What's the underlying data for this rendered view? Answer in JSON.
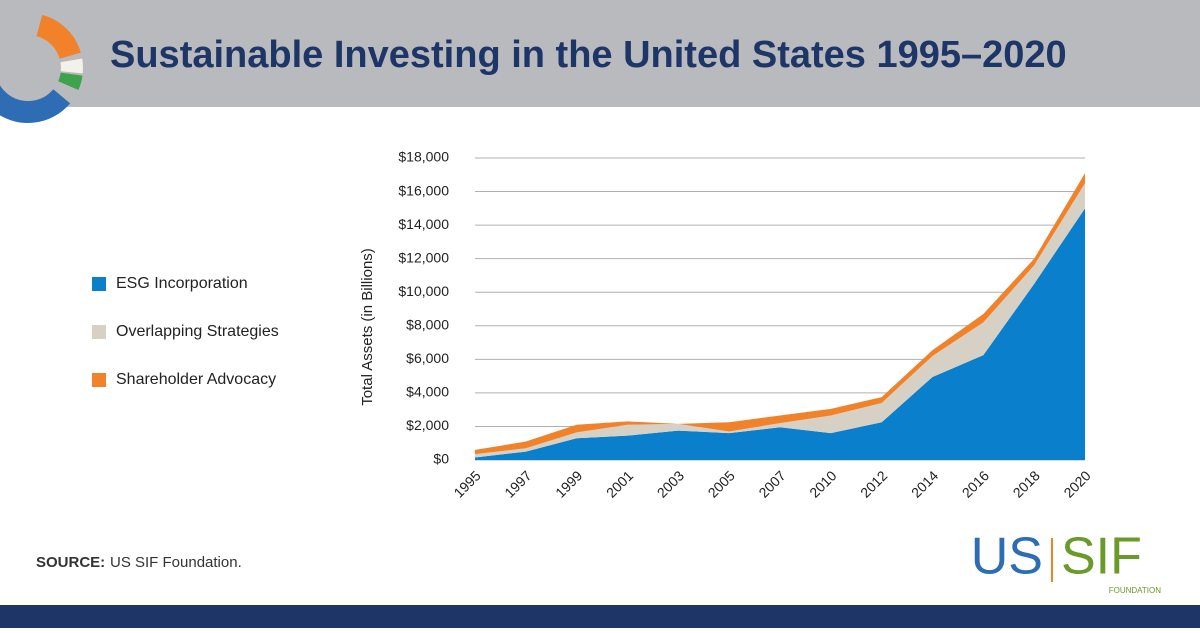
{
  "chart_data": {
    "type": "stacked_area",
    "title": "Sustainable Investing in the United States 1995–2020",
    "y_label": "Total Assets (in Billions)",
    "categories": [
      "1995",
      "1997",
      "1999",
      "2001",
      "2003",
      "2005",
      "2007",
      "2010",
      "2012",
      "2014",
      "2016",
      "2018",
      "2020"
    ],
    "series": [
      {
        "name": "ESG Incorporation",
        "color": "#0a7fcb",
        "values": [
          150,
          500,
          1300,
          1450,
          1750,
          1600,
          1950,
          1600,
          2250,
          4950,
          6250,
          10500,
          15000
        ]
      },
      {
        "name": "Overlapping Strategies",
        "color": "#d6d1c4",
        "values": [
          200,
          200,
          350,
          650,
          400,
          100,
          250,
          1050,
          1150,
          1250,
          1950,
          1100,
          1500
        ]
      },
      {
        "name": "Shareholder Advocacy",
        "color": "#f1822a",
        "values": [
          250,
          400,
          450,
          200,
          0,
          550,
          450,
          400,
          350,
          350,
          500,
          400,
          600
        ]
      }
    ],
    "ylim": [
      0,
      18000
    ],
    "yticks": [
      {
        "value": 0,
        "label": "$0"
      },
      {
        "value": 2000,
        "label": "$2,000"
      },
      {
        "value": 4000,
        "label": "$4,000"
      },
      {
        "value": 6000,
        "label": "$6,000"
      },
      {
        "value": 8000,
        "label": "$8,000"
      },
      {
        "value": 10000,
        "label": "$10,000"
      },
      {
        "value": 12000,
        "label": "$12,000"
      },
      {
        "value": 14000,
        "label": "$14,000"
      },
      {
        "value": 16000,
        "label": "$16,000"
      },
      {
        "value": 18000,
        "label": "$18,000"
      }
    ],
    "grid": true
  },
  "source": {
    "label": "SOURCE:",
    "text": "US SIF Foundation."
  },
  "logo": {
    "left": "US",
    "right": "SIF",
    "sub": "FOUNDATION"
  }
}
